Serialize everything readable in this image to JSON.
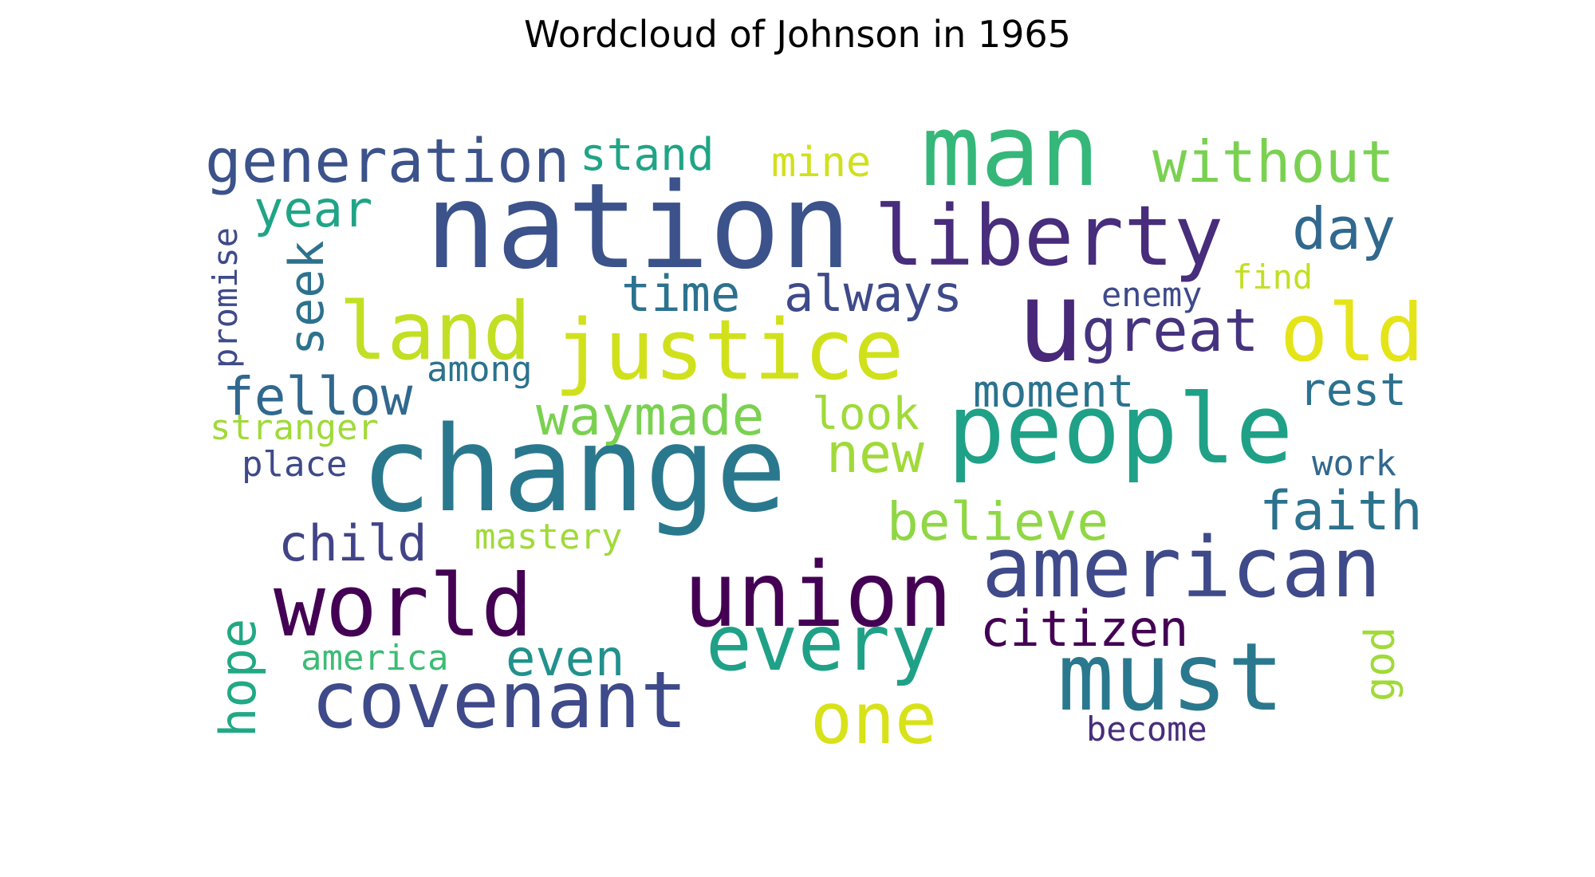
{
  "chart_data": {
    "type": "wordcloud",
    "title": "Wordcloud of Johnson in 1965",
    "colormap": "viridis",
    "background": "#ffffff",
    "words": [
      {
        "text": "nation",
        "weight": 1.0,
        "color": "#3b528b"
      },
      {
        "text": "change",
        "weight": 1.0,
        "color": "#2a788e"
      },
      {
        "text": "man",
        "weight": 0.84,
        "color": "#35b779"
      },
      {
        "text": "people",
        "weight": 0.8,
        "color": "#1fa187"
      },
      {
        "text": "union",
        "weight": 0.76,
        "color": "#440154"
      },
      {
        "text": "world",
        "weight": 0.7,
        "color": "#440154"
      },
      {
        "text": "must",
        "weight": 0.8,
        "color": "#2a788e"
      },
      {
        "text": "u",
        "weight": 0.94,
        "color": "#482878"
      },
      {
        "text": "american",
        "weight": 0.72,
        "color": "#3e4a89"
      },
      {
        "text": "liberty",
        "weight": 0.72,
        "color": "#472d7b"
      },
      {
        "text": "justice",
        "weight": 0.72,
        "color": "#d0e11c"
      },
      {
        "text": "covenant",
        "weight": 0.66,
        "color": "#3e4a89"
      },
      {
        "text": "land",
        "weight": 0.68,
        "color": "#c2df23"
      },
      {
        "text": "old",
        "weight": 0.68,
        "color": "#e5e419"
      },
      {
        "text": "every",
        "weight": 0.66,
        "color": "#1fa187"
      },
      {
        "text": "one",
        "weight": 0.6,
        "color": "#d8e219"
      },
      {
        "text": "generation",
        "weight": 0.52,
        "color": "#3b528b"
      },
      {
        "text": "great",
        "weight": 0.5,
        "color": "#46337e"
      },
      {
        "text": "without",
        "weight": 0.5,
        "color": "#7ad151"
      },
      {
        "text": "day",
        "weight": 0.48,
        "color": "#31688e"
      },
      {
        "text": "faith",
        "weight": 0.46,
        "color": "#2c728e"
      },
      {
        "text": "new",
        "weight": 0.46,
        "color": "#a0da39"
      },
      {
        "text": "waymade",
        "weight": 0.46,
        "color": "#7ad151"
      },
      {
        "text": "fellow",
        "weight": 0.44,
        "color": "#31688e"
      },
      {
        "text": "believe",
        "weight": 0.44,
        "color": "#8fd744"
      },
      {
        "text": "citizen",
        "weight": 0.42,
        "color": "#440154"
      },
      {
        "text": "child",
        "weight": 0.42,
        "color": "#414487"
      },
      {
        "text": "always",
        "weight": 0.42,
        "color": "#3e4a89"
      },
      {
        "text": "time",
        "weight": 0.42,
        "color": "#2c728e"
      },
      {
        "text": "year",
        "weight": 0.42,
        "color": "#20a486"
      },
      {
        "text": "even",
        "weight": 0.42,
        "color": "#21918c"
      },
      {
        "text": "seek",
        "weight": 0.42,
        "color": "#2c728e"
      },
      {
        "text": "hope",
        "weight": 0.42,
        "color": "#22a884"
      },
      {
        "text": "moment",
        "weight": 0.38,
        "color": "#2c728e"
      },
      {
        "text": "rest",
        "weight": 0.38,
        "color": "#2c728e"
      },
      {
        "text": "look",
        "weight": 0.38,
        "color": "#a0da39"
      },
      {
        "text": "stand",
        "weight": 0.38,
        "color": "#20a486"
      },
      {
        "text": "mine",
        "weight": 0.36,
        "color": "#d0e11c"
      },
      {
        "text": "god",
        "weight": 0.36,
        "color": "#a0da39"
      },
      {
        "text": "mastery",
        "weight": 0.3,
        "color": "#a0da39"
      },
      {
        "text": "stranger",
        "weight": 0.3,
        "color": "#a0da39"
      },
      {
        "text": "place",
        "weight": 0.3,
        "color": "#3e4a89"
      },
      {
        "text": "work",
        "weight": 0.3,
        "color": "#31688e"
      },
      {
        "text": "among",
        "weight": 0.3,
        "color": "#2c728e"
      },
      {
        "text": "america",
        "weight": 0.3,
        "color": "#3dbc74"
      },
      {
        "text": "promise",
        "weight": 0.3,
        "color": "#3e4a89"
      },
      {
        "text": "enemy",
        "weight": 0.3,
        "color": "#3e4a89"
      },
      {
        "text": "find",
        "weight": 0.3,
        "color": "#c2df23"
      },
      {
        "text": "become",
        "weight": 0.3,
        "color": "#472d7b"
      }
    ]
  }
}
